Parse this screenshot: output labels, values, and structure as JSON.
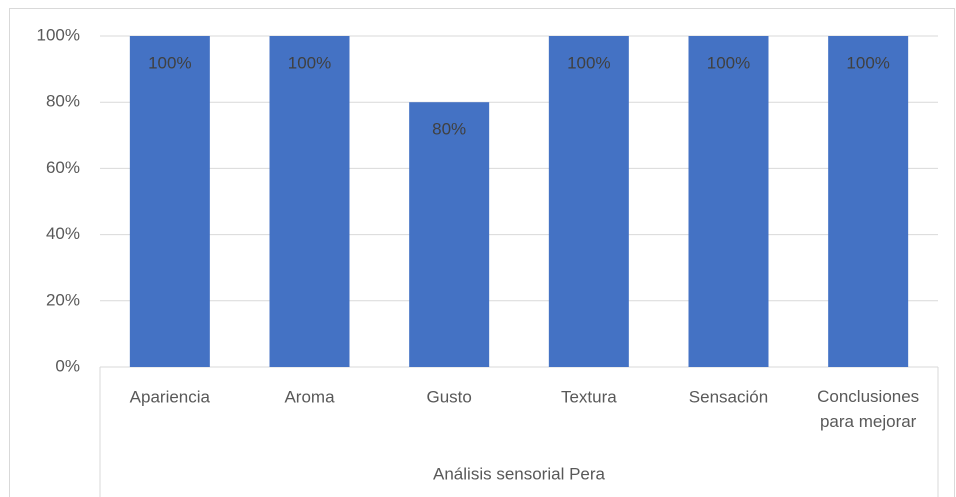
{
  "chart_data": {
    "type": "bar",
    "categories": [
      "Apariencia",
      "Aroma",
      "Gusto",
      "Textura",
      "Sensación",
      "Conclusiones para mejorar"
    ],
    "values": [
      100,
      100,
      80,
      100,
      100,
      100
    ],
    "value_labels": [
      "100%",
      "100%",
      "80%",
      "100%",
      "100%",
      "100%"
    ],
    "group_label": "Análisis sensorial Pera",
    "color": "#4472c4",
    "ylim": [
      0,
      100
    ],
    "yticks": [
      {
        "value": 0,
        "label": "0%"
      },
      {
        "value": 20,
        "label": "20%"
      },
      {
        "value": 40,
        "label": "40%"
      },
      {
        "value": 60,
        "label": "60%"
      },
      {
        "value": 80,
        "label": "80%"
      },
      {
        "value": 100,
        "label": "100%"
      }
    ],
    "grid": true
  }
}
